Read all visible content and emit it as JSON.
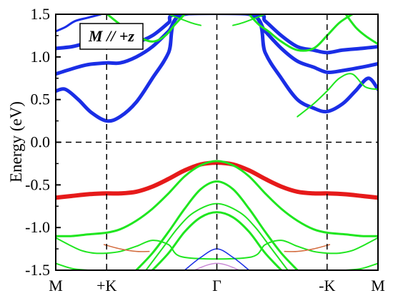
{
  "chart_data": {
    "type": "line",
    "ylabel": "Energy (eV)",
    "ylim": [
      -1.5,
      1.5
    ],
    "yticks": [
      "-1.5",
      "-1.0",
      "-0.5",
      "0.0",
      "0.5",
      "1.0",
      "1.5"
    ],
    "xlim": [
      0,
      1
    ],
    "kpoints": [
      {
        "label": "M",
        "x": 0.0
      },
      {
        "label": "+K",
        "x": 0.158
      },
      {
        "label": "Γ",
        "x": 0.5
      },
      {
        "label": "-K",
        "x": 0.842
      },
      {
        "label": "M",
        "x": 1.0
      }
    ],
    "annotation": "M // +z",
    "reference_level": 0.0,
    "colors": {
      "blue": "#1a2ee6",
      "green": "#1fe61f",
      "red": "#e61a1a",
      "orange": "#d2693a",
      "purple": "#c98ad6",
      "axis": "#000000"
    },
    "series": [
      {
        "color": "red",
        "weight": 6,
        "x": [
          0,
          0.05,
          0.1,
          0.158,
          0.2,
          0.25,
          0.3,
          0.35,
          0.4,
          0.45,
          0.5,
          0.55,
          0.6,
          0.65,
          0.7,
          0.75,
          0.8,
          0.842,
          0.9,
          0.95,
          1
        ],
        "y": [
          -0.65,
          -0.63,
          -0.61,
          -0.6,
          -0.6,
          -0.58,
          -0.52,
          -0.43,
          -0.33,
          -0.26,
          -0.24,
          -0.26,
          -0.33,
          -0.43,
          -0.52,
          -0.58,
          -0.6,
          -0.6,
          -0.61,
          -0.63,
          -0.65
        ]
      },
      {
        "color": "blue",
        "weight": 5,
        "x": [
          0,
          0.03,
          0.07,
          0.11,
          0.158,
          0.2,
          0.25,
          0.3,
          0.35,
          0.39,
          0.61,
          0.65,
          0.7,
          0.75,
          0.8,
          0.842,
          0.89,
          0.93,
          0.97,
          1
        ],
        "y": [
          0.6,
          0.62,
          0.5,
          0.35,
          0.25,
          0.3,
          0.47,
          0.75,
          1.05,
          1.5,
          1.5,
          1.05,
          0.75,
          0.5,
          0.4,
          0.36,
          0.45,
          0.6,
          0.75,
          0.62
        ]
      },
      {
        "color": "blue",
        "weight": 5,
        "x": [
          0,
          0.05,
          0.1,
          0.158,
          0.2,
          0.25,
          0.3,
          0.35,
          0.4,
          0.6,
          0.65,
          0.7,
          0.75,
          0.8,
          0.842,
          0.89,
          0.95,
          1
        ],
        "y": [
          0.8,
          0.86,
          0.91,
          0.93,
          0.93,
          1.0,
          1.12,
          1.3,
          1.5,
          1.5,
          1.3,
          1.1,
          0.95,
          0.88,
          0.82,
          0.84,
          0.88,
          0.92
        ]
      },
      {
        "color": "blue",
        "weight": 5,
        "x": [
          0,
          0.05,
          0.1,
          0.158,
          0.2,
          0.25,
          0.3,
          0.35,
          0.38,
          0.62,
          0.65,
          0.7,
          0.75,
          0.8,
          0.842,
          0.89,
          0.95,
          1
        ],
        "y": [
          1.1,
          1.12,
          1.16,
          1.15,
          1.14,
          1.17,
          1.25,
          1.4,
          1.5,
          1.5,
          1.42,
          1.25,
          1.12,
          1.08,
          1.05,
          1.08,
          1.1,
          1.12
        ]
      },
      {
        "color": "blue",
        "weight": 3,
        "x": [
          0,
          0.03,
          0.06,
          0.1,
          0.14
        ],
        "y": [
          1.3,
          1.35,
          1.42,
          1.46,
          1.5
        ]
      },
      {
        "color": "green",
        "weight": 3,
        "x": [
          0,
          0.05,
          0.1,
          0.158,
          0.2,
          0.25,
          0.3,
          0.35,
          0.4,
          0.45,
          0.5,
          0.55,
          0.6,
          0.65,
          0.7,
          0.75,
          0.8,
          0.842,
          0.9,
          0.95,
          1
        ],
        "y": [
          -1.1,
          -1.1,
          -1.08,
          -1.06,
          -1.02,
          -0.92,
          -0.78,
          -0.6,
          -0.4,
          -0.27,
          -0.22,
          -0.27,
          -0.4,
          -0.6,
          -0.78,
          -0.92,
          -1.02,
          -1.06,
          -1.08,
          -1.1,
          -1.1
        ]
      },
      {
        "color": "green",
        "weight": 3,
        "x": [
          0.25,
          0.3,
          0.35,
          0.4,
          0.45,
          0.5,
          0.55,
          0.6,
          0.65,
          0.7,
          0.75
        ],
        "y": [
          -1.5,
          -1.3,
          -1.05,
          -0.78,
          -0.55,
          -0.46,
          -0.55,
          -0.78,
          -1.05,
          -1.3,
          -1.5
        ]
      },
      {
        "color": "green",
        "weight": 2,
        "x": [
          0.28,
          0.33,
          0.38,
          0.43,
          0.5,
          0.57,
          0.62,
          0.67,
          0.72
        ],
        "y": [
          -1.5,
          -1.25,
          -1.0,
          -0.82,
          -0.72,
          -0.82,
          -1.0,
          -1.25,
          -1.5
        ]
      },
      {
        "color": "green",
        "weight": 3,
        "x": [
          0.3,
          0.35,
          0.4,
          0.45,
          0.5,
          0.55,
          0.6,
          0.65,
          0.7
        ],
        "y": [
          -1.5,
          -1.3,
          -1.05,
          -0.88,
          -0.82,
          -0.88,
          -1.05,
          -1.3,
          -1.5
        ]
      },
      {
        "color": "green",
        "weight": 2,
        "x": [
          0,
          0.04,
          0.08,
          0.12,
          0.158,
          0.2,
          0.25,
          0.3,
          0.35,
          0.4,
          0.6,
          0.65,
          0.7,
          0.75,
          0.8,
          0.842,
          0.88,
          0.92,
          0.96,
          1
        ],
        "y": [
          -1.12,
          -1.2,
          -1.27,
          -1.3,
          -1.3,
          -1.28,
          -1.22,
          -1.15,
          -1.2,
          -1.35,
          -1.35,
          -1.2,
          -1.15,
          -1.22,
          -1.28,
          -1.3,
          -1.3,
          -1.27,
          -1.2,
          -1.12
        ]
      },
      {
        "color": "green",
        "weight": 3,
        "x": [
          0.16,
          0.2,
          0.25,
          0.3,
          0.34,
          0.37,
          0.4
        ],
        "y": [
          1.5,
          1.38,
          1.25,
          1.18,
          1.25,
          1.38,
          1.5
        ]
      },
      {
        "color": "green",
        "weight": 3,
        "x": [
          0.6,
          0.63,
          0.66,
          0.7,
          0.75,
          0.8,
          0.842,
          0.88,
          0.92
        ],
        "y": [
          1.5,
          1.38,
          1.3,
          1.18,
          1.08,
          1.1,
          1.25,
          1.4,
          1.5
        ]
      },
      {
        "color": "green",
        "weight": 3,
        "x": [
          0.9,
          0.93,
          0.96,
          1
        ],
        "y": [
          1.5,
          1.35,
          1.25,
          1.15
        ]
      },
      {
        "color": "green",
        "weight": 2,
        "x": [
          0.35,
          0.42,
          0.45
        ],
        "y": [
          1.5,
          1.4,
          1.37
        ]
      },
      {
        "color": "green",
        "weight": 2,
        "x": [
          0.55,
          0.58,
          0.65
        ],
        "y": [
          1.37,
          1.4,
          1.5
        ]
      },
      {
        "color": "green",
        "weight": 2,
        "x": [
          0.75,
          0.8,
          0.842,
          0.88,
          0.92,
          0.96,
          1
        ],
        "y": [
          0.3,
          0.45,
          0.6,
          0.75,
          0.8,
          0.65,
          0.62
        ]
      },
      {
        "color": "green",
        "weight": 2,
        "x": [
          0,
          0.05,
          0.1,
          0.15
        ],
        "y": [
          -1.42,
          -1.48,
          -1.5,
          -1.5
        ]
      },
      {
        "color": "green",
        "weight": 2,
        "x": [
          0.85,
          0.9,
          0.95,
          1
        ],
        "y": [
          -1.5,
          -1.5,
          -1.48,
          -1.42
        ]
      },
      {
        "color": "orange",
        "weight": 1.5,
        "x": [
          0.15,
          0.2,
          0.25,
          0.29
        ],
        "y": [
          -1.2,
          -1.25,
          -1.28,
          -1.28
        ]
      },
      {
        "color": "orange",
        "weight": 1.5,
        "x": [
          0.71,
          0.75,
          0.8,
          0.85
        ],
        "y": [
          -1.28,
          -1.28,
          -1.25,
          -1.2
        ]
      },
      {
        "color": "blue",
        "weight": 1.5,
        "x": [
          0.4,
          0.45,
          0.5,
          0.55,
          0.6
        ],
        "y": [
          -1.5,
          -1.35,
          -1.25,
          -1.35,
          -1.5
        ]
      },
      {
        "color": "purple",
        "weight": 1.5,
        "x": [
          0.43,
          0.47,
          0.5,
          0.53,
          0.57
        ],
        "y": [
          -1.5,
          -1.44,
          -1.42,
          -1.44,
          -1.5
        ]
      }
    ]
  }
}
